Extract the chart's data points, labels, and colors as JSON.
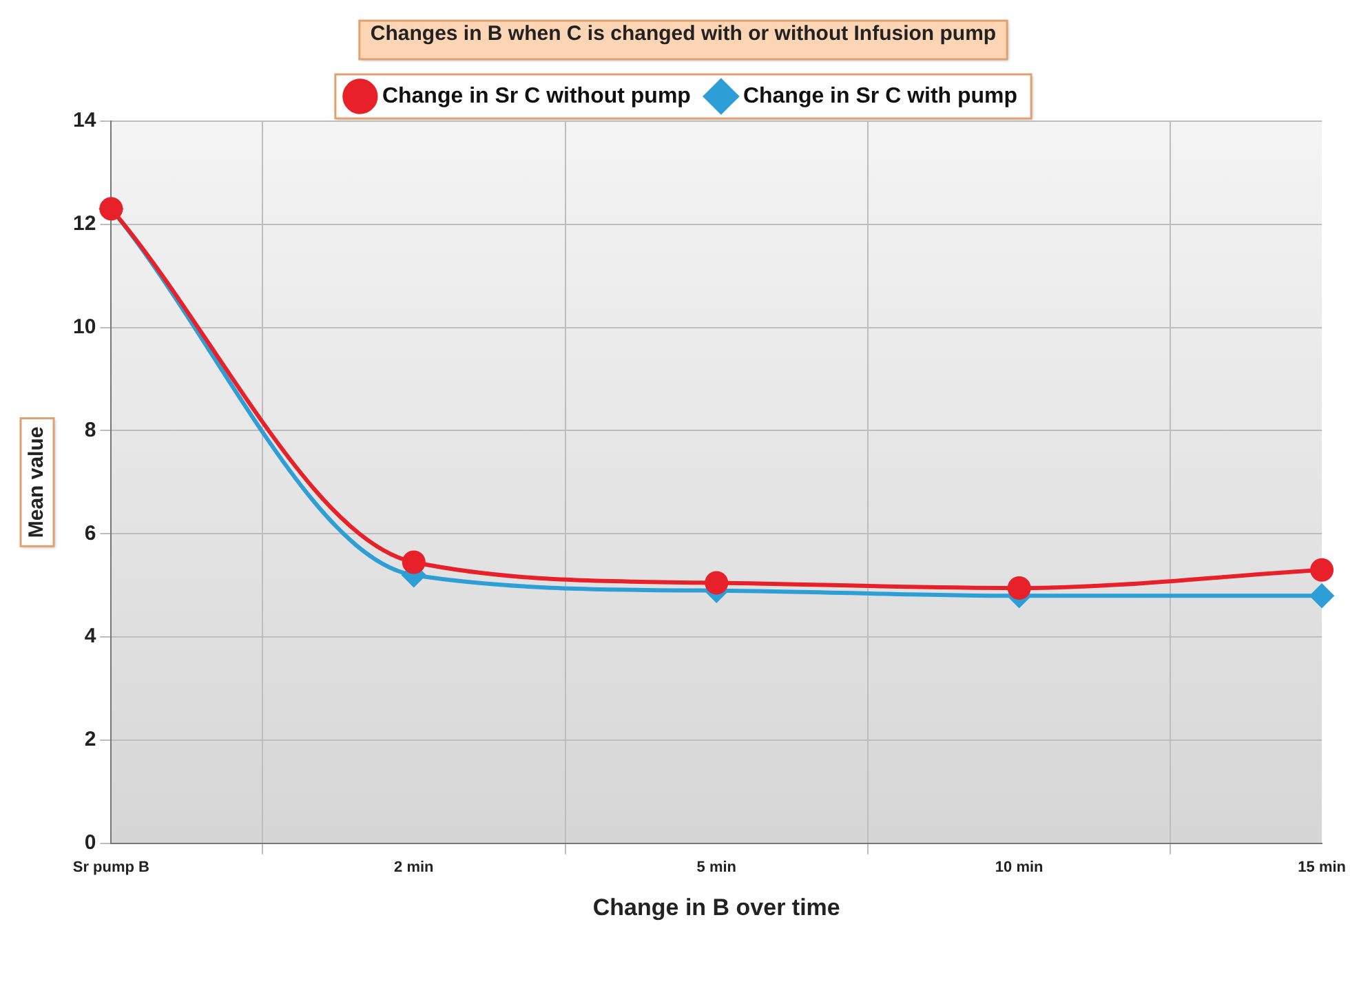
{
  "chart_data": {
    "type": "line",
    "title": "Changes in B when C is changed with or without Infusion pump",
    "xlabel": "Change in B over time",
    "ylabel": "Mean value",
    "categories": [
      "Sr pump B",
      "2 min",
      "5 min",
      "10 min",
      "15 min"
    ],
    "series": [
      {
        "name": "Change in Sr C without pump",
        "color": "#e8202a",
        "marker": "circle",
        "values": [
          12.3,
          5.45,
          5.05,
          4.95,
          5.3
        ]
      },
      {
        "name": "Change in Sr C with pump",
        "color": "#2e9fd6",
        "marker": "diamond",
        "values": [
          12.3,
          5.2,
          4.9,
          4.8,
          4.8
        ]
      }
    ],
    "ylim": [
      0,
      14
    ],
    "yticks": [
      0,
      2,
      4,
      6,
      8,
      10,
      12,
      14
    ],
    "grid": true,
    "legend": "top"
  }
}
